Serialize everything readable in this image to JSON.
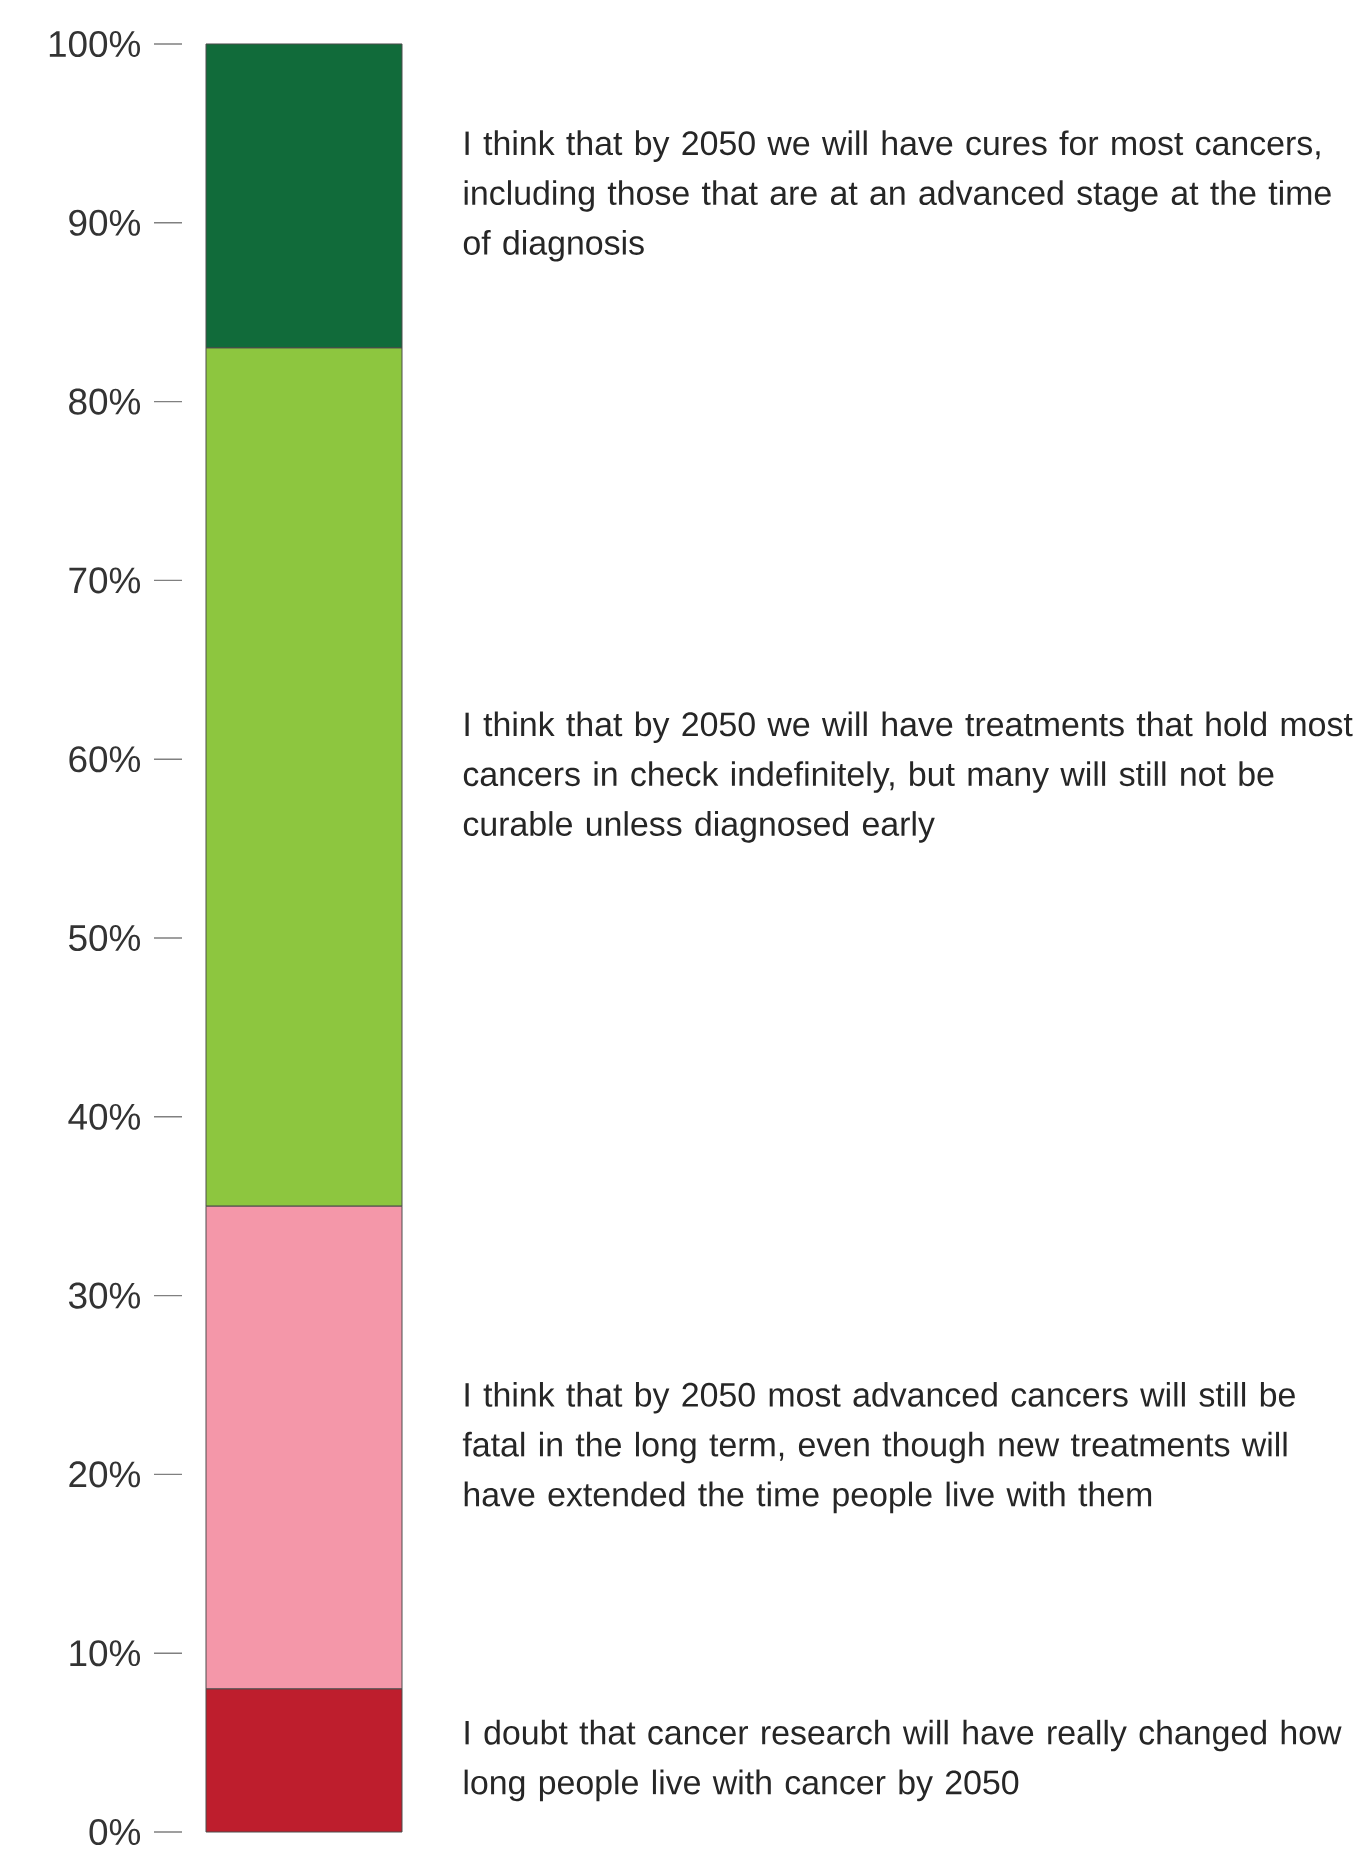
{
  "chart_data": {
    "type": "bar",
    "stacked": true,
    "categories": [
      null
    ],
    "ylim": [
      0,
      100
    ],
    "yticks": [
      {
        "value": 0,
        "label": "0%"
      },
      {
        "value": 10,
        "label": "10%"
      },
      {
        "value": 20,
        "label": "20%"
      },
      {
        "value": 30,
        "label": "30%"
      },
      {
        "value": 40,
        "label": "40%"
      },
      {
        "value": 50,
        "label": "50%"
      },
      {
        "value": 60,
        "label": "60%"
      },
      {
        "value": 70,
        "label": "70%"
      },
      {
        "value": 80,
        "label": "80%"
      },
      {
        "value": 90,
        "label": "90%"
      },
      {
        "value": 100,
        "label": "100%"
      }
    ],
    "series": [
      {
        "name": "I doubt that cancer research will have really changed how long people live with cancer by 2050",
        "color": "#be1e2d",
        "values": [
          8
        ]
      },
      {
        "name": "I think that by 2050 most advanced cancers will still be fatal in the long term, even though new treatments will have extended the time people live with them",
        "color": "#f497a9",
        "values": [
          27
        ]
      },
      {
        "name": "I think that by 2050 we will have treatments that hold most cancers in check indefinitely, but many will still not be curable unless diagnosed early",
        "color": "#8dc63f",
        "values": [
          48
        ]
      },
      {
        "name": "I think that by 2050 we will have cures for most cancers, including those that are at an advanced stage at the time of diagnosis",
        "color": "#116b3a",
        "values": [
          17
        ]
      }
    ]
  }
}
